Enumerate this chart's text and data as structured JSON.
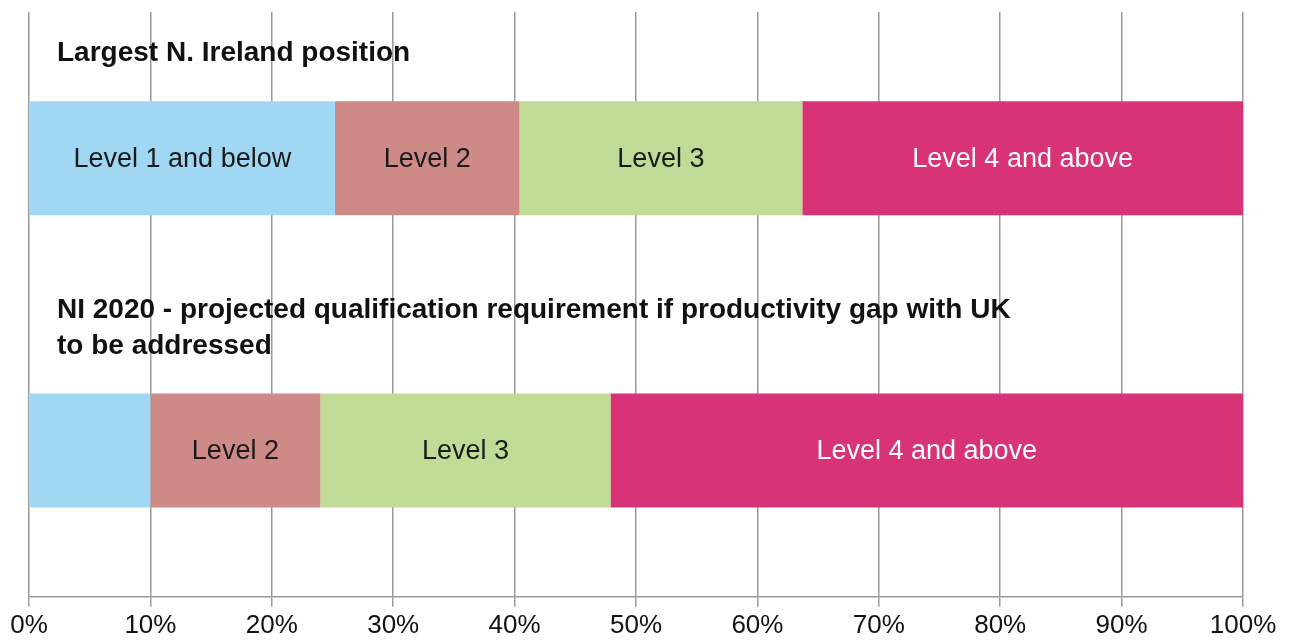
{
  "chart_data": {
    "type": "bar",
    "orientation": "horizontal",
    "stacked": true,
    "categories": [
      "Largest N. Ireland position",
      "NI 2020 - projected qualification requirement if productivity gap with UK to be addressed"
    ],
    "series": [
      {
        "name": "Level 1 and below",
        "color": "#a0d8f4",
        "values": [
          25.2,
          10
        ]
      },
      {
        "name": "Level 2",
        "color": "#cd8a86",
        "values": [
          15.2,
          14
        ]
      },
      {
        "name": "Level 3",
        "color": "#bfdb95",
        "values": [
          23.3,
          23.9
        ]
      },
      {
        "name": "Level 4 and above",
        "color": "#d93378",
        "values": [
          36.3,
          52.1
        ]
      }
    ],
    "xlim": [
      0,
      100
    ],
    "xticks": [
      {
        "value": 0,
        "label": "0%"
      },
      {
        "value": 10,
        "label": "10%"
      },
      {
        "value": 20,
        "label": "20%"
      },
      {
        "value": 30,
        "label": "30%"
      },
      {
        "value": 40,
        "label": "40%"
      },
      {
        "value": 50,
        "label": "50%"
      },
      {
        "value": 60,
        "label": "60%"
      },
      {
        "value": 70,
        "label": "70%"
      },
      {
        "value": 80,
        "label": "80%"
      },
      {
        "value": 90,
        "label": "90%"
      },
      {
        "value": 100,
        "label": "100%"
      }
    ],
    "grid": "x",
    "legend": false
  }
}
